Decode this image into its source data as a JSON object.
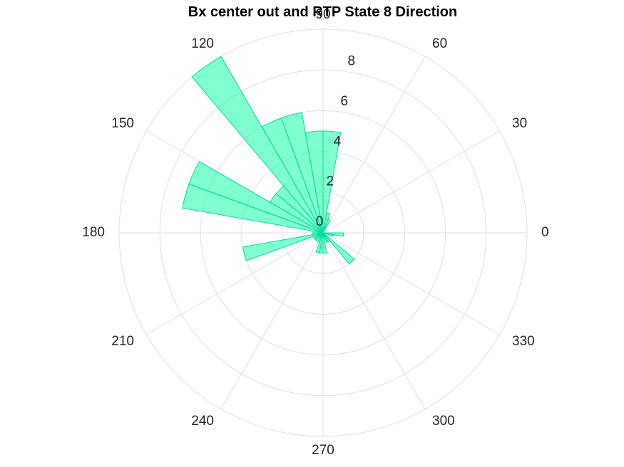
{
  "title": "Bx  center out and RTP State 8 Direction",
  "colors": {
    "bar_fill": "#00FF9F",
    "bar_edge": "#00DFA0",
    "grid": "#E1E1E1",
    "text": "#262626"
  },
  "chart_data": {
    "type": "polar-histogram",
    "title": "Bx  center out and RTP State 8 Direction",
    "theta_unit": "degrees",
    "bin_width_deg": 10,
    "r_max": 10,
    "r_ticks": [
      "0",
      "2",
      "4",
      "6",
      "8"
    ],
    "r_tick_values": [
      0,
      2,
      4,
      6,
      8
    ],
    "theta_ticks": [
      "0",
      "30",
      "60",
      "90",
      "120",
      "150",
      "180",
      "210",
      "240",
      "270",
      "300",
      "330"
    ],
    "theta_tick_values": [
      0,
      30,
      60,
      90,
      120,
      150,
      180,
      210,
      240,
      270,
      300,
      330
    ],
    "grid": true,
    "bins": [
      {
        "start": 0,
        "end": 10,
        "value": 0
      },
      {
        "start": 10,
        "end": 20,
        "value": 0
      },
      {
        "start": 20,
        "end": 30,
        "value": 0
      },
      {
        "start": 30,
        "end": 40,
        "value": 0
      },
      {
        "start": 40,
        "end": 50,
        "value": 0
      },
      {
        "start": 50,
        "end": 60,
        "value": 0
      },
      {
        "start": 60,
        "end": 70,
        "value": 0.7
      },
      {
        "start": 70,
        "end": 80,
        "value": 1
      },
      {
        "start": 80,
        "end": 90,
        "value": 5
      },
      {
        "start": 90,
        "end": 100,
        "value": 5
      },
      {
        "start": 100,
        "end": 110,
        "value": 6
      },
      {
        "start": 110,
        "end": 120,
        "value": 6
      },
      {
        "start": 120,
        "end": 130,
        "value": 10
      },
      {
        "start": 130,
        "end": 140,
        "value": 3
      },
      {
        "start": 140,
        "end": 150,
        "value": 3
      },
      {
        "start": 150,
        "end": 160,
        "value": 7
      },
      {
        "start": 160,
        "end": 170,
        "value": 7
      },
      {
        "start": 170,
        "end": 180,
        "value": 0.5
      },
      {
        "start": 180,
        "end": 190,
        "value": 0.5
      },
      {
        "start": 190,
        "end": 200,
        "value": 4
      },
      {
        "start": 200,
        "end": 210,
        "value": 0.5
      },
      {
        "start": 210,
        "end": 220,
        "value": 0.5
      },
      {
        "start": 220,
        "end": 230,
        "value": 0.5
      },
      {
        "start": 230,
        "end": 240,
        "value": 0
      },
      {
        "start": 240,
        "end": 250,
        "value": 0.5
      },
      {
        "start": 250,
        "end": 260,
        "value": 1
      },
      {
        "start": 260,
        "end": 270,
        "value": 1
      },
      {
        "start": 270,
        "end": 280,
        "value": 1
      },
      {
        "start": 280,
        "end": 290,
        "value": 0
      },
      {
        "start": 290,
        "end": 300,
        "value": 0.5
      },
      {
        "start": 300,
        "end": 310,
        "value": 0.5
      },
      {
        "start": 310,
        "end": 320,
        "value": 2
      },
      {
        "start": 320,
        "end": 330,
        "value": 0
      },
      {
        "start": 330,
        "end": 340,
        "value": 0
      },
      {
        "start": 340,
        "end": 350,
        "value": 0.5
      },
      {
        "start": 350,
        "end": 360,
        "value": 1
      }
    ]
  }
}
